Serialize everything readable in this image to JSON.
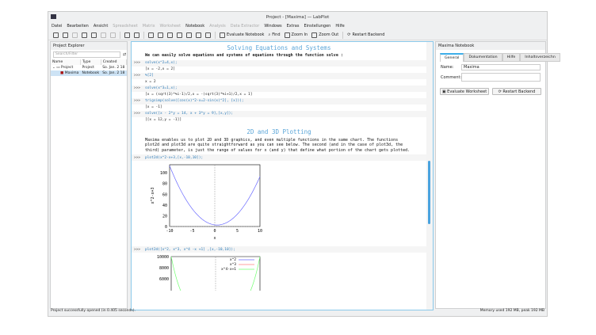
{
  "window": {
    "title": "Project - [Maxima] — LabPlot"
  },
  "menu": [
    {
      "label": "Datei",
      "enabled": true
    },
    {
      "label": "Bearbeiten",
      "enabled": true
    },
    {
      "label": "Ansicht",
      "enabled": true
    },
    {
      "label": "Spreadsheet",
      "enabled": false
    },
    {
      "label": "Matrix",
      "enabled": false
    },
    {
      "label": "Worksheet",
      "enabled": false
    },
    {
      "label": "Notebook",
      "enabled": true
    },
    {
      "label": "Analysis",
      "enabled": false
    },
    {
      "label": "Data Extractor",
      "enabled": false
    },
    {
      "label": "Windows",
      "enabled": true
    },
    {
      "label": "Extras",
      "enabled": true
    },
    {
      "label": "Einstellungen",
      "enabled": true
    },
    {
      "label": "Hilfe",
      "enabled": true
    }
  ],
  "toolbar": {
    "evaluate": "Evaluate Notebook",
    "find": "Find",
    "zoom_in": "Zoom In",
    "zoom_out": "Zoom Out",
    "restart": "Restart Backend"
  },
  "explorer": {
    "title": "Project Explorer",
    "search_placeholder": "Search/Filter",
    "columns": [
      "Name",
      "Type",
      "Created"
    ],
    "rows": [
      {
        "name": "Project",
        "type": "Project",
        "created": "So. Jan. 2 18"
      },
      {
        "name": "Maxima",
        "type": "Notebook",
        "created": "So. Jan. 2 18"
      }
    ]
  },
  "notebook": {
    "heading1": "Solving Equations and Systems",
    "para1": "We can easily solve equations and systems of equations through the function solve :",
    "prompt": ">>>",
    "cells": [
      {
        "in": "solve(x^2=4,x);",
        "out": "[x = -2,x = 2]"
      },
      {
        "in": "%[2]",
        "out": "x = 2"
      },
      {
        "in": "solve(x^3=1,x);",
        "out": "[x = (sqrt(3)*%i-1)/2,x = -(sqrt(3)*%i+1)/2,x = 1]"
      },
      {
        "in": "trigsimp(solve([cos(x)^2-x=2-sin(x)^2], [x]));",
        "out": "[x = -1]"
      },
      {
        "in": "solve([x - 2*y = 14,  x + 3*y = 9],[x,y]);",
        "out": "[[x = 12,y = -1]]"
      }
    ],
    "heading2": "2D and 3D Plotting",
    "para2": "Maxima enables us to plot 2D and 3D graphics, and even multiple functions in the same chart. The functions plot2d and plot3d are quite straightforward as you can see below. The second (and in the case of plot3d, the third) parameter, is just the range of values for x (and y) that define what portion of the chart gets plotted.",
    "plot1_cmd": "plot2d(x^2-x+3,[x,-10,10]);",
    "plot2_cmd": "plot2d([x^2, x^3, x^4 -x +1] ,[x,-10,10]);"
  },
  "chart_data": [
    {
      "type": "line",
      "expr": "x^2-x+3",
      "xlabel": "x",
      "ylabel": "x^2-x+3",
      "xlim": [
        -10,
        10
      ],
      "ylim": [
        0,
        115
      ],
      "xticks": [
        "-10",
        "-5",
        "0",
        "5",
        "10"
      ],
      "yticks": [
        "0",
        "20",
        "40",
        "60",
        "80",
        "100"
      ],
      "series": [
        {
          "color": "#6a6aff"
        }
      ]
    },
    {
      "type": "line",
      "xlim": [
        -10,
        10
      ],
      "yticks": [
        "10000",
        "8000",
        "6000"
      ],
      "series": [
        {
          "name": "x^2",
          "color": "#6a6aff"
        },
        {
          "name": "x^3",
          "color": "#ff8080"
        },
        {
          "name": "x^4-x+1",
          "color": "#70ff70"
        }
      ]
    }
  ],
  "right": {
    "title": "Maxima Notebook",
    "tabs": [
      "General",
      "Dokumentation",
      "Hilfe",
      "Inhaltsverzeichn"
    ],
    "name_label": "Name:",
    "name_value": "Maxima",
    "comment_label": "Comment:",
    "comment_value": "",
    "evaluate": "Evaluate Worksheet",
    "restart": "Restart Backend"
  },
  "status": {
    "left": "Project successfully opened (in 0.405 seconds).",
    "right": "Memory used 192 MB, peak 192 MB"
  }
}
